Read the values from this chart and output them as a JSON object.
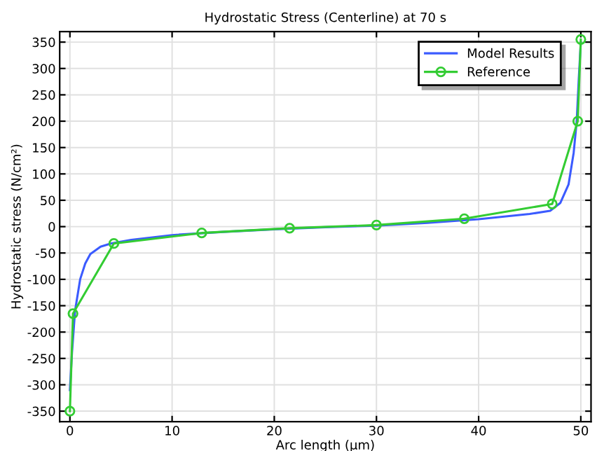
{
  "chart_data": {
    "type": "line",
    "title": "Hydrostatic Stress (Centerline) at 70 s",
    "xlabel": "Arc length (µm)",
    "ylabel": "Hydrostatic stress (N/cm²)",
    "xlim": [
      -1,
      51
    ],
    "ylim": [
      -370,
      370
    ],
    "xticks": [
      0,
      10,
      20,
      30,
      40,
      50
    ],
    "yticks": [
      -350,
      -300,
      -250,
      -200,
      -150,
      -100,
      -50,
      0,
      50,
      100,
      150,
      200,
      250,
      300,
      350
    ],
    "grid": true,
    "legend": "top right",
    "series": [
      {
        "name": "Model Results",
        "color": "#3b5bff",
        "marker": "none",
        "x": [
          0,
          0.2,
          0.5,
          1,
          1.5,
          2,
          3,
          4,
          6,
          10,
          15,
          20,
          25,
          30,
          35,
          40,
          45,
          47,
          48,
          48.8,
          49.3,
          49.6,
          49.8,
          50
        ],
        "values": [
          -310,
          -240,
          -160,
          -100,
          -70,
          -52,
          -38,
          -32,
          -25,
          -16,
          -10,
          -5,
          -1,
          2,
          7,
          14,
          24,
          30,
          45,
          80,
          140,
          200,
          280,
          350
        ]
      },
      {
        "name": "Reference",
        "color": "#33cc33",
        "marker": "circle",
        "x": [
          0,
          0.3,
          4.3,
          12.9,
          21.5,
          30,
          38.6,
          47.2,
          49.7,
          50
        ],
        "values": [
          -350,
          -165,
          -32,
          -12,
          -3,
          3,
          15,
          43,
          200,
          355
        ]
      }
    ]
  }
}
